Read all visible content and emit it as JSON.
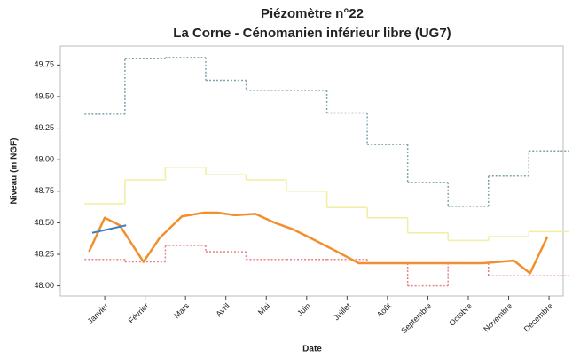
{
  "chart_data": {
    "type": "line",
    "title": [
      "Piézomètre n°22",
      "La Corne - Cénomanien inférieur libre (UG7)"
    ],
    "x_label": "Date",
    "y_label": "Niveau (m NGF)",
    "xlim": [
      -0.1,
      12.35
    ],
    "xticks": [
      {
        "value": 1,
        "label": "Janvier"
      },
      {
        "value": 2,
        "label": "Février"
      },
      {
        "value": 3,
        "label": "Mars"
      },
      {
        "value": 4,
        "label": "Avril"
      },
      {
        "value": 5,
        "label": "Mai"
      },
      {
        "value": 6,
        "label": "Juin"
      },
      {
        "value": 7,
        "label": "Juillet"
      },
      {
        "value": 8,
        "label": "Août"
      },
      {
        "value": 9,
        "label": "Septembre"
      },
      {
        "value": 10,
        "label": "Octobre"
      },
      {
        "value": 11,
        "label": "Novembre"
      },
      {
        "value": 12,
        "label": "Décembre"
      }
    ],
    "ylim": [
      47.92,
      49.9
    ],
    "yticks": [
      {
        "value": 48,
        "label": "48.00"
      },
      {
        "value": 48.25,
        "label": "48.25"
      },
      {
        "value": 48.5,
        "label": "48.50"
      },
      {
        "value": 48.75,
        "label": "48.75"
      },
      {
        "value": 49,
        "label": "49.00"
      },
      {
        "value": 49.25,
        "label": "49.25"
      },
      {
        "value": 49.5,
        "label": "49.50"
      },
      {
        "value": 49.75,
        "label": "49.75"
      }
    ],
    "grid": false,
    "series": [
      {
        "color": "#7fa3ab",
        "step": true,
        "dash": true,
        "width": 1.5,
        "x": [
          1,
          2,
          3,
          4,
          5,
          6,
          7,
          8,
          9,
          10,
          11,
          12
        ],
        "values": [
          49.36,
          49.8,
          49.81,
          49.63,
          49.55,
          49.55,
          49.37,
          49.12,
          48.82,
          48.63,
          48.87,
          49.07
        ]
      },
      {
        "color": "#f2eea0",
        "step": true,
        "dash": false,
        "width": 1.5,
        "x": [
          1,
          2,
          3,
          4,
          5,
          6,
          7,
          8,
          9,
          10,
          11,
          12
        ],
        "values": [
          48.65,
          48.84,
          48.94,
          48.88,
          48.84,
          48.75,
          48.62,
          48.54,
          48.42,
          48.36,
          48.39,
          48.43
        ]
      },
      {
        "color": "#e8828a",
        "step": true,
        "dash": true,
        "width": 1.5,
        "x": [
          1,
          2,
          3,
          4,
          5,
          6,
          7,
          8,
          9,
          10,
          11,
          12
        ],
        "values": [
          48.21,
          48.19,
          48.32,
          48.27,
          48.21,
          48.21,
          48.21,
          48.18,
          48.0,
          48.18,
          48.08,
          48.08
        ]
      },
      {
        "color": "#f28e2b",
        "step": false,
        "dash": false,
        "width": 2.5,
        "x": [
          0.61,
          1.0,
          1.37,
          1.96,
          2.36,
          2.91,
          3.46,
          3.79,
          4.22,
          4.73,
          5.21,
          5.65,
          6.09,
          6.64,
          7.29,
          8.28,
          10.36,
          11.13,
          11.53,
          11.96
        ],
        "values": [
          48.27,
          48.54,
          48.48,
          48.19,
          48.38,
          48.55,
          48.58,
          48.58,
          48.56,
          48.57,
          48.5,
          48.45,
          48.38,
          48.29,
          48.18,
          48.18,
          48.18,
          48.2,
          48.1,
          48.39
        ]
      },
      {
        "color": "#3b7fc4",
        "step": false,
        "dash": false,
        "width": 2,
        "x": [
          0.69,
          1.53
        ],
        "values": [
          48.42,
          48.48
        ]
      }
    ]
  }
}
